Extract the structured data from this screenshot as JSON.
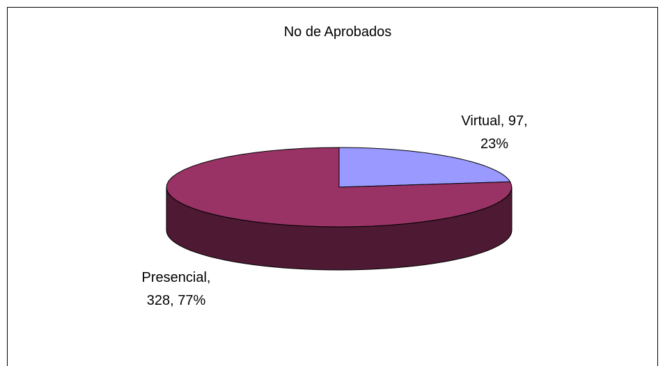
{
  "chart_data": {
    "type": "pie3d",
    "title": "No de Aprobados",
    "values": [
      97,
      328
    ],
    "value_labels": [
      [
        "Virtual, 97,",
        "23%"
      ],
      [
        "Presencial,",
        "328, 77%"
      ]
    ],
    "colors": [
      "#9999ff",
      "#993366"
    ],
    "side_colors": [
      "#4d4d80",
      "#4d1933"
    ]
  }
}
